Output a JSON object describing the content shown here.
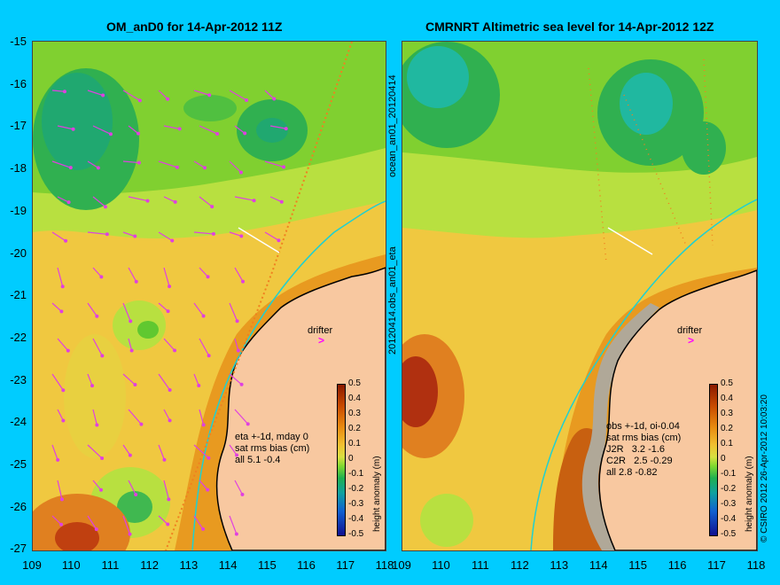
{
  "left_panel": {
    "title": "OM_anD0 for 14-Apr-2012 11Z",
    "stats": "eta +-1d, mday 0\nsat rms bias (cm)\nall 5.1 -0.4",
    "drifter_label": "drifter"
  },
  "right_panel": {
    "title": "CMRNRT Altimetric sea level  for 14-Apr-2012 12Z",
    "stats": "obs +-1d, oi-0.04\nsat rms bias (cm)\nJ2R   3.2 -1.6\nC2R   2.5 -0.29\nall 2.8 -0.82",
    "drifter_label": "drifter"
  },
  "y_ticks": [
    "-15",
    "-16",
    "-17",
    "-18",
    "-19",
    "-20",
    "-21",
    "-22",
    "-23",
    "-24",
    "-25",
    "-26",
    "-27"
  ],
  "x_ticks": [
    "109",
    "110",
    "111",
    "112",
    "113",
    "114",
    "115",
    "116",
    "117",
    "118"
  ],
  "colorbar": {
    "label": "height anomaly (m)",
    "ticks": [
      "0.5",
      "0.4",
      "0.3",
      "0.2",
      "0.1",
      "0",
      "-0.1",
      "-0.2",
      "-0.3",
      "-0.4",
      "-0.5"
    ]
  },
  "side_text_left": "ocean_an01_20120414",
  "side_text_right": "20120414.obs_an01_eta",
  "credit": "© CSIRO 2012   26-Apr-2012 10:03:20",
  "colors": {
    "background": "#00ccff",
    "land": "#f8c8a0",
    "vectors": "#e040e0"
  }
}
